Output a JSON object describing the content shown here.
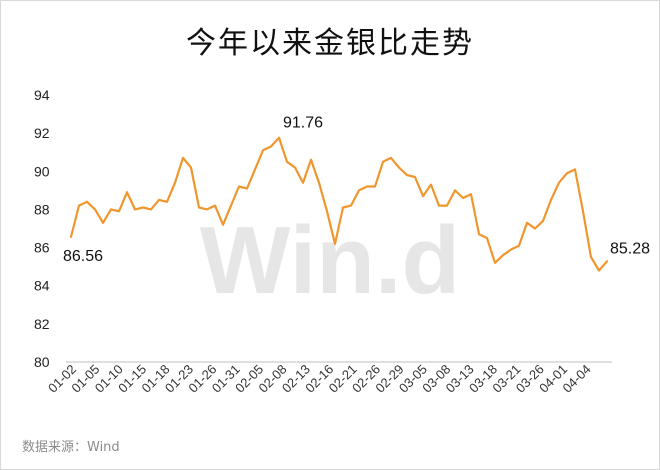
{
  "title": "今年以来金银比走势",
  "source": "数据来源：Wind",
  "watermark": "Win.d",
  "colors": {
    "line": "#F0962E",
    "axis": "#bfbfbf",
    "frame": "#d9d9d9"
  },
  "chart_data": {
    "type": "line",
    "title": "今年以来金银比走势",
    "xlabel": "",
    "ylabel": "",
    "ylim": [
      80,
      94
    ],
    "yticks": [
      80,
      82,
      84,
      86,
      88,
      90,
      92,
      94
    ],
    "grid": false,
    "x_tick_labels": [
      "01-02",
      "01-05",
      "01-10",
      "01-15",
      "01-18",
      "01-23",
      "01-26",
      "01-31",
      "02-05",
      "02-08",
      "02-13",
      "02-16",
      "02-21",
      "02-26",
      "02-29",
      "03-05",
      "03-08",
      "03-13",
      "03-18",
      "03-21",
      "03-26",
      "04-01",
      "04-04"
    ],
    "values": [
      86.56,
      88.2,
      88.4,
      88.0,
      87.3,
      88.0,
      87.9,
      88.9,
      88.0,
      88.1,
      88.0,
      88.5,
      88.4,
      89.4,
      90.7,
      90.2,
      88.1,
      88.0,
      88.2,
      87.2,
      88.2,
      89.2,
      89.1,
      90.1,
      91.1,
      91.3,
      91.76,
      90.5,
      90.2,
      89.4,
      90.6,
      89.4,
      87.9,
      86.2,
      88.1,
      88.2,
      89.0,
      89.2,
      89.2,
      90.5,
      90.7,
      90.2,
      89.8,
      89.7,
      88.7,
      89.3,
      88.2,
      88.2,
      89.0,
      88.6,
      88.8,
      86.7,
      86.5,
      85.2,
      85.6,
      85.9,
      86.1,
      87.3,
      87.0,
      87.4,
      88.5,
      89.4,
      89.9,
      90.1,
      87.9,
      85.5,
      84.8,
      85.28
    ],
    "annotations": [
      {
        "index": 0,
        "label": "86.56"
      },
      {
        "index": 26,
        "label": "91.76"
      },
      {
        "index": 67,
        "label": "85.28"
      }
    ]
  }
}
